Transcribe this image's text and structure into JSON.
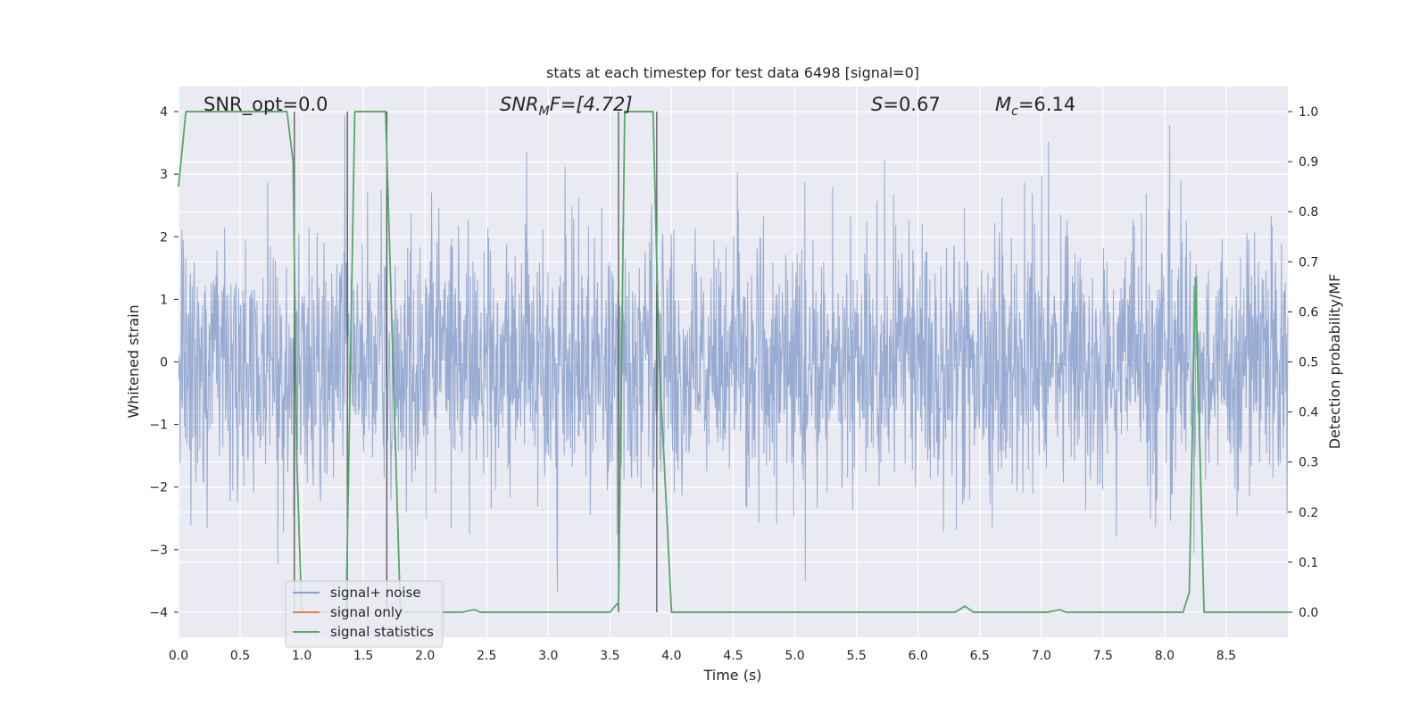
{
  "chart_data": {
    "type": "line",
    "title": "stats at each timestep for test data 6498 [signal=0]",
    "xlabel": "Time (s)",
    "ylabel_left": "Whitened strain",
    "ylabel_right": "Detection probability/MF",
    "xlim": [
      0.0,
      9.0
    ],
    "ylim_left": [
      -4.4,
      4.4
    ],
    "ylim_right": [
      -0.05,
      1.05
    ],
    "x_ticks": [
      "0.0",
      "0.5",
      "1.0",
      "1.5",
      "2.0",
      "2.5",
      "3.0",
      "3.5",
      "4.0",
      "4.5",
      "5.0",
      "5.5",
      "6.0",
      "6.5",
      "7.0",
      "7.5",
      "8.0",
      "8.5"
    ],
    "y_ticks_left": [
      "4",
      "3",
      "2",
      "1",
      "0",
      "−1",
      "−2",
      "−3",
      "−4"
    ],
    "y_ticks_right": [
      "1.0",
      "0.9",
      "0.8",
      "0.7",
      "0.6",
      "0.5",
      "0.4",
      "0.3",
      "0.2",
      "0.1",
      "0.0"
    ],
    "grid": true,
    "legend_position": "lower-left",
    "annotations": {
      "snr_opt": "SNR_opt=0.0",
      "snr_mf_label": "SNR",
      "snr_mf_sub": "M",
      "snr_mf_rest": "F=[4.72]",
      "s_label": "S",
      "s_rest": "=0.67",
      "mc_label": "M",
      "mc_sub": "c",
      "mc_rest": "=6.14"
    },
    "series": [
      {
        "name": "signal+ noise",
        "color": "#8aa0cc",
        "amplitude_envelope": [
          -3.8,
          4.0
        ]
      },
      {
        "name": "signal only",
        "color": "#dd8452"
      },
      {
        "name": "signal statistics",
        "color": "#55a868",
        "points": [
          [
            0.0,
            0.85
          ],
          [
            0.06,
            1.0
          ],
          [
            0.5,
            1.0
          ],
          [
            0.88,
            1.0
          ],
          [
            0.93,
            0.9
          ],
          [
            0.96,
            0.3
          ],
          [
            1.0,
            0.0
          ],
          [
            1.36,
            0.0
          ],
          [
            1.43,
            1.0
          ],
          [
            1.68,
            1.0
          ],
          [
            1.74,
            0.5
          ],
          [
            1.8,
            0.0
          ],
          [
            2.3,
            0.0
          ],
          [
            2.4,
            0.005
          ],
          [
            2.45,
            0.0
          ],
          [
            3.5,
            0.0
          ],
          [
            3.57,
            0.02
          ],
          [
            3.62,
            1.0
          ],
          [
            3.85,
            1.0
          ],
          [
            3.9,
            0.5
          ],
          [
            4.0,
            0.0
          ],
          [
            6.3,
            0.0
          ],
          [
            6.38,
            0.012
          ],
          [
            6.45,
            0.0
          ],
          [
            7.05,
            0.0
          ],
          [
            7.15,
            0.005
          ],
          [
            7.2,
            0.0
          ],
          [
            8.15,
            0.0
          ],
          [
            8.2,
            0.04
          ],
          [
            8.25,
            0.67
          ],
          [
            8.32,
            0.0
          ],
          [
            9.0,
            0.0
          ]
        ]
      }
    ],
    "vertical_markers": [
      0.94,
      1.37,
      1.69,
      3.57,
      3.88
    ]
  }
}
